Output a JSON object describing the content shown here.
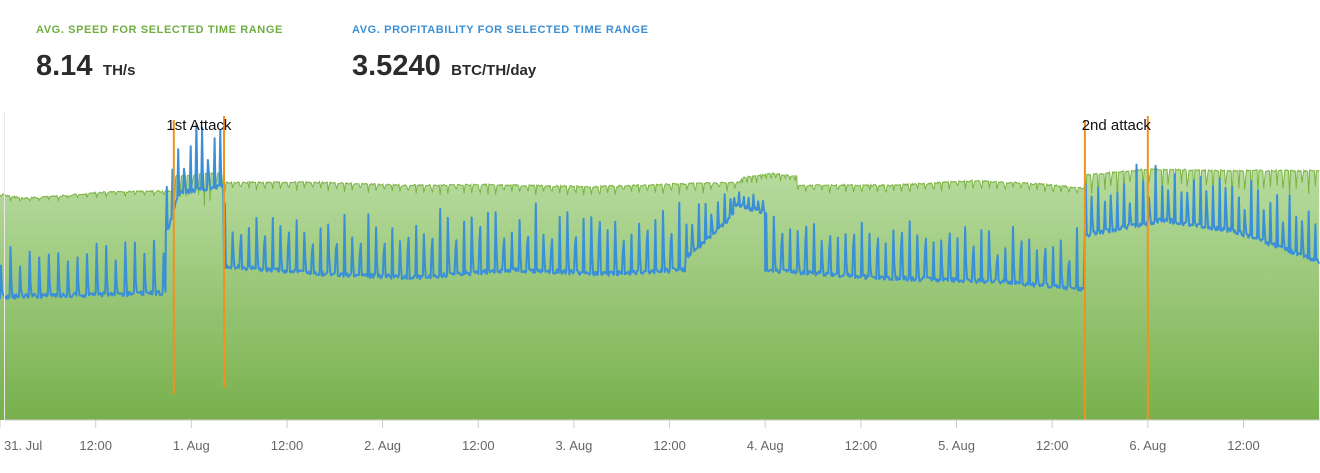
{
  "stats": {
    "speed": {
      "label": "AVG. SPEED FOR SELECTED TIME RANGE",
      "value": "8.14",
      "unit": "TH/s"
    },
    "profitability": {
      "label": "AVG. PROFITABILITY FOR SELECTED TIME RANGE",
      "value": "3.5240",
      "unit": "BTC/TH/day"
    }
  },
  "colors": {
    "speed_line": "#7cb342",
    "speed_fill_top": "#b8dca0",
    "speed_fill_bottom": "#78b04c",
    "profit_line": "#3a8fd6",
    "annotation": "#f0921e",
    "axis_text": "#666666"
  },
  "chart_data": {
    "type": "area",
    "x_axis": {
      "ticks": [
        "31. Jul",
        "12:00",
        "1. Aug",
        "12:00",
        "2. Aug",
        "12:00",
        "3. Aug",
        "12:00",
        "4. Aug",
        "12:00",
        "5. Aug",
        "12:00",
        "6. Aug",
        "12:00"
      ],
      "tick_hours": [
        0,
        12,
        24,
        36,
        48,
        60,
        72,
        84,
        96,
        108,
        120,
        132,
        144,
        156
      ],
      "range_hours": [
        0,
        165.6
      ]
    },
    "y_axis": {
      "visible": false
    },
    "grid": false,
    "legend": "none",
    "annotations": [
      {
        "text": "1st Attack",
        "start_hour": 21.8,
        "end_hour": 28.1
      },
      {
        "text": "2nd attack",
        "start_hour": 136.1,
        "end_hour": 144.0
      }
    ],
    "series": [
      {
        "type": "area",
        "segments": [
          {
            "start_hour": 0,
            "end_hour": 21.8,
            "base": 7.7,
            "trend": [
              [
                0,
                7.7
              ],
              [
                3,
                7.55
              ],
              [
                8,
                7.65
              ],
              [
                14,
                7.78
              ],
              [
                21.8,
                7.8
              ]
            ],
            "spike_every": 1.2,
            "spike_depth": 0.15
          },
          {
            "start_hour": 21.8,
            "end_hour": 28.1,
            "base": 8.35,
            "trend": [
              [
                21.8,
                8.3
              ],
              [
                28.1,
                8.45
              ]
            ],
            "spike_every": 0.75,
            "spike_depth": 1.1
          },
          {
            "start_hour": 28.1,
            "end_hour": 93,
            "base": 8.05,
            "trend": [
              [
                28.1,
                8.1
              ],
              [
                40,
                8.1
              ],
              [
                50,
                8.0
              ],
              [
                62,
                8.02
              ],
              [
                74,
                7.95
              ],
              [
                86,
                8.05
              ],
              [
                93,
                8.1
              ]
            ],
            "spike_every": 1.0,
            "spike_depth": 0.35
          },
          {
            "start_hour": 93,
            "end_hour": 100,
            "base": 8.3,
            "trend": [
              [
                93,
                8.25
              ],
              [
                97,
                8.4
              ],
              [
                100,
                8.3
              ]
            ],
            "spike_every": 0.6,
            "spike_depth": 0.8
          },
          {
            "start_hour": 100,
            "end_hour": 136.1,
            "base": 8.1,
            "trend": [
              [
                100,
                8.0
              ],
              [
                112,
                8.0
              ],
              [
                122,
                8.15
              ],
              [
                130,
                8.05
              ],
              [
                136.1,
                7.9
              ]
            ],
            "spike_every": 1.0,
            "spike_depth": 0.3
          },
          {
            "start_hour": 136.1,
            "end_hour": 165.6,
            "base": 8.5,
            "trend": [
              [
                136.1,
                8.35
              ],
              [
                144,
                8.55
              ],
              [
                152,
                8.5
              ],
              [
                165.6,
                8.5
              ]
            ],
            "spike_every": 0.8,
            "spike_depth": 1.0
          }
        ],
        "ylim": [
          0,
          10.5
        ]
      },
      {
        "type": "line",
        "segments": [
          {
            "start_hour": 0,
            "end_hour": 20.8,
            "base": 3.1,
            "trend": [
              [
                0,
                3.1
              ],
              [
                20.8,
                3.15
              ]
            ],
            "spike_every": 1.2,
            "spike_height": 0.7
          },
          {
            "start_hour": 20.8,
            "end_hour": 28.1,
            "base": 4.45,
            "trend": [
              [
                20.8,
                3.9
              ],
              [
                22.5,
                4.45
              ],
              [
                28.1,
                4.55
              ]
            ],
            "spike_every": 0.75,
            "spike_height": 0.9
          },
          {
            "start_hour": 28.1,
            "end_hour": 86,
            "base": 3.45,
            "trend": [
              [
                28.1,
                3.5
              ],
              [
                40,
                3.4
              ],
              [
                52,
                3.35
              ],
              [
                64,
                3.45
              ],
              [
                76,
                3.4
              ],
              [
                86,
                3.45
              ]
            ],
            "spike_every": 1.0,
            "spike_height": 0.9
          },
          {
            "start_hour": 86,
            "end_hour": 92,
            "base": 3.8,
            "trend": [
              [
                86,
                3.6
              ],
              [
                92,
                4.15
              ]
            ],
            "spike_every": 0.8,
            "spike_height": 0.6
          },
          {
            "start_hour": 92,
            "end_hour": 96,
            "base": 4.3,
            "trend": [
              [
                92,
                4.3
              ],
              [
                96,
                4.2
              ]
            ],
            "spike_every": 0.6,
            "spike_height": 0.6
          },
          {
            "start_hour": 96,
            "end_hour": 136.1,
            "base": 3.3,
            "trend": [
              [
                96,
                3.45
              ],
              [
                110,
                3.35
              ],
              [
                125,
                3.3
              ],
              [
                136.1,
                3.2
              ]
            ],
            "spike_every": 1.0,
            "spike_height": 0.8
          },
          {
            "start_hour": 136.1,
            "end_hour": 165.6,
            "base": 4.0,
            "trend": [
              [
                136.1,
                3.9
              ],
              [
                146,
                4.1
              ],
              [
                155,
                3.95
              ],
              [
                165.6,
                3.55
              ]
            ],
            "spike_every": 0.8,
            "spike_height": 0.8
          }
        ],
        "ylim": [
          1.5,
          5.5
        ]
      }
    ]
  }
}
